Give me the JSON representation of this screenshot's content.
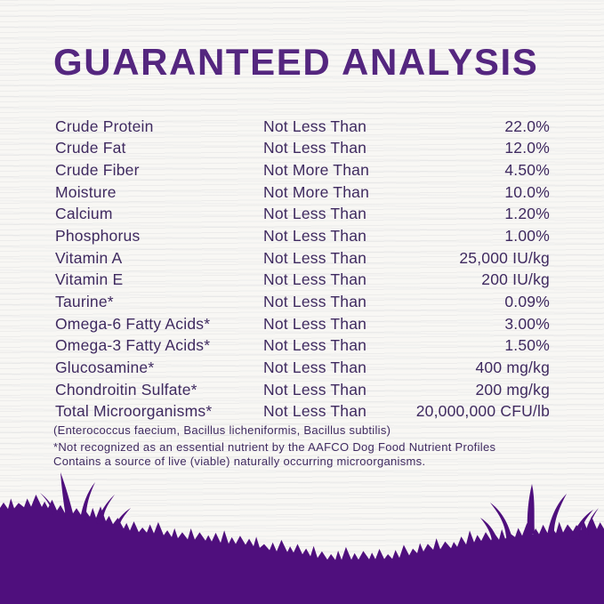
{
  "title": "GUARANTEED ANALYSIS",
  "colors": {
    "title_text": "#54267f",
    "body_text": "#3f2a60",
    "grass": "#4f0f7d",
    "background": "#f8f7f4"
  },
  "analysis_table": {
    "rows": [
      {
        "nutrient": "Crude Protein",
        "qualifier": "Not Less Than",
        "value": "22.0%"
      },
      {
        "nutrient": "Crude Fat",
        "qualifier": "Not Less Than",
        "value": "12.0%"
      },
      {
        "nutrient": "Crude Fiber",
        "qualifier": "Not More Than",
        "value": "4.50%"
      },
      {
        "nutrient": "Moisture",
        "qualifier": "Not More Than",
        "value": "10.0%"
      },
      {
        "nutrient": "Calcium",
        "qualifier": "Not Less Than",
        "value": "1.20%"
      },
      {
        "nutrient": "Phosphorus",
        "qualifier": "Not Less Than",
        "value": "1.00%"
      },
      {
        "nutrient": "Vitamin A",
        "qualifier": "Not Less Than",
        "value": "25,000 IU/kg"
      },
      {
        "nutrient": "Vitamin E",
        "qualifier": "Not Less Than",
        "value": "200 IU/kg"
      },
      {
        "nutrient": "Taurine*",
        "qualifier": "Not Less Than",
        "value": "0.09%"
      },
      {
        "nutrient": "Omega-6 Fatty Acids*",
        "qualifier": "Not Less Than",
        "value": "3.00%"
      },
      {
        "nutrient": "Omega-3 Fatty Acids*",
        "qualifier": "Not Less Than",
        "value": "1.50%"
      },
      {
        "nutrient": "Glucosamine*",
        "qualifier": "Not Less Than",
        "value": "400 mg/kg"
      },
      {
        "nutrient": "Chondroitin Sulfate*",
        "qualifier": "Not Less Than",
        "value": "200 mg/kg"
      },
      {
        "nutrient": "Total Microorganisms*",
        "qualifier": "Not Less Than",
        "value": "20,000,000 CFU/lb"
      }
    ]
  },
  "notes": {
    "microorganism_species": "(Enterococcus faecium, Bacillus licheniformis, Bacillus subtilis)",
    "footnote_line1": "*Not recognized as an essential nutrient by the AAFCO Dog Food Nutrient Profiles",
    "footnote_line2": "Contains a source of live (viable) naturally occurring microorganisms."
  }
}
